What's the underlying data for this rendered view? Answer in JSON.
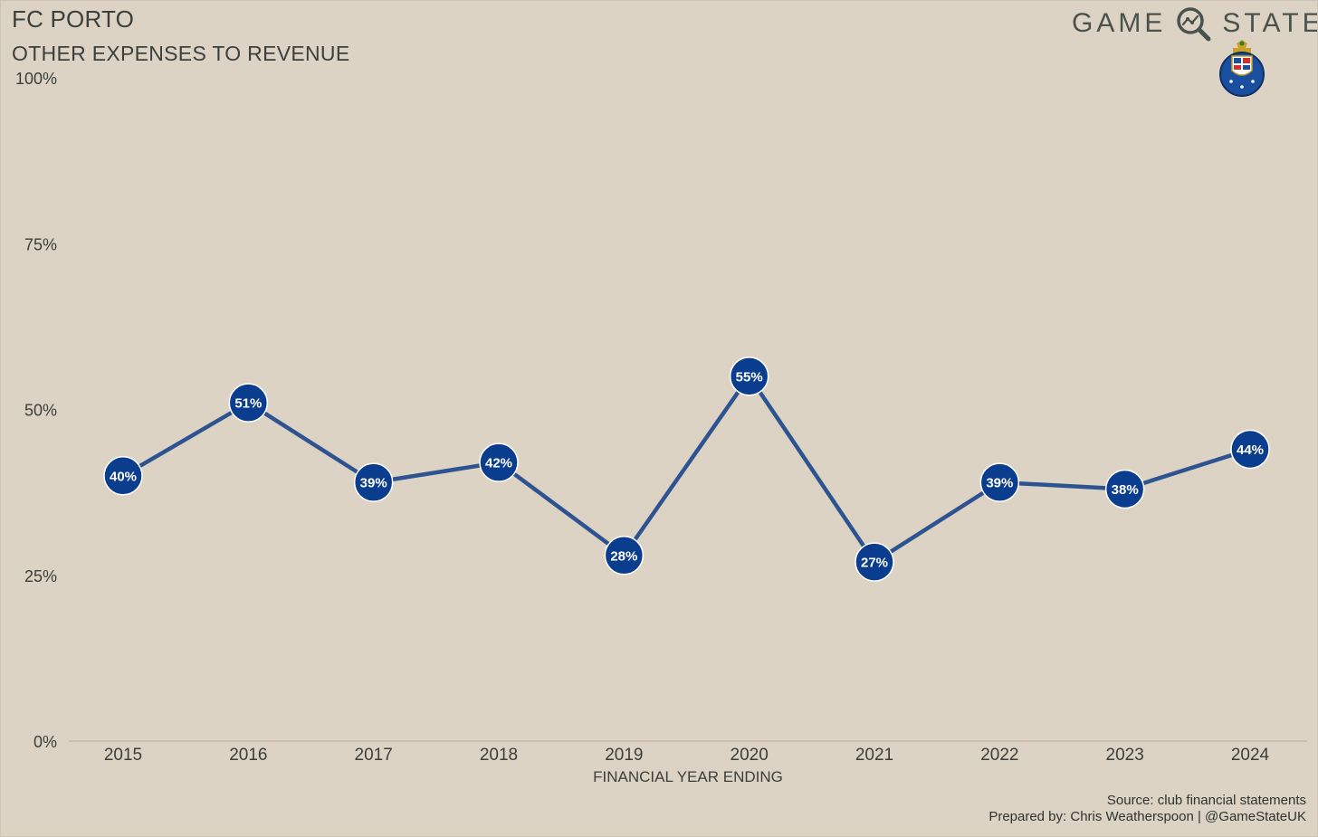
{
  "header": {
    "title": "FC PORTO",
    "subtitle": "OTHER EXPENSES TO REVENUE"
  },
  "brand": {
    "word_left": "GAME",
    "word_right": "STATE",
    "icon": "magnifier-chart-icon",
    "crest_icon": "fc-porto-crest-icon"
  },
  "chart_data": {
    "type": "line",
    "title": "OTHER EXPENSES TO REVENUE",
    "xlabel": "FINANCIAL YEAR ENDING",
    "ylabel": "",
    "categories": [
      "2015",
      "2016",
      "2017",
      "2018",
      "2019",
      "2020",
      "2021",
      "2022",
      "2023",
      "2024"
    ],
    "series": [
      {
        "name": "Other expenses to revenue",
        "values": [
          40,
          51,
          39,
          42,
          28,
          55,
          27,
          39,
          38,
          44
        ],
        "labels": [
          "40%",
          "51%",
          "39%",
          "42%",
          "28%",
          "55%",
          "27%",
          "39%",
          "38%",
          "44%"
        ]
      }
    ],
    "ylim": [
      0,
      100
    ],
    "yticks": [
      0,
      25,
      50,
      75,
      100
    ],
    "ytick_labels": [
      "0%",
      "25%",
      "50%",
      "75%",
      "100%"
    ],
    "grid": false,
    "colors": {
      "line": "#2d5390",
      "marker": "#0b3d8f",
      "marker_edge": "#ffffff",
      "label": "#ffffff",
      "axis": "#b9ad9c"
    }
  },
  "footer": {
    "source": "Source: club financial statements",
    "prepared": "Prepared by: Chris Weatherspoon | @GameStateUK"
  }
}
